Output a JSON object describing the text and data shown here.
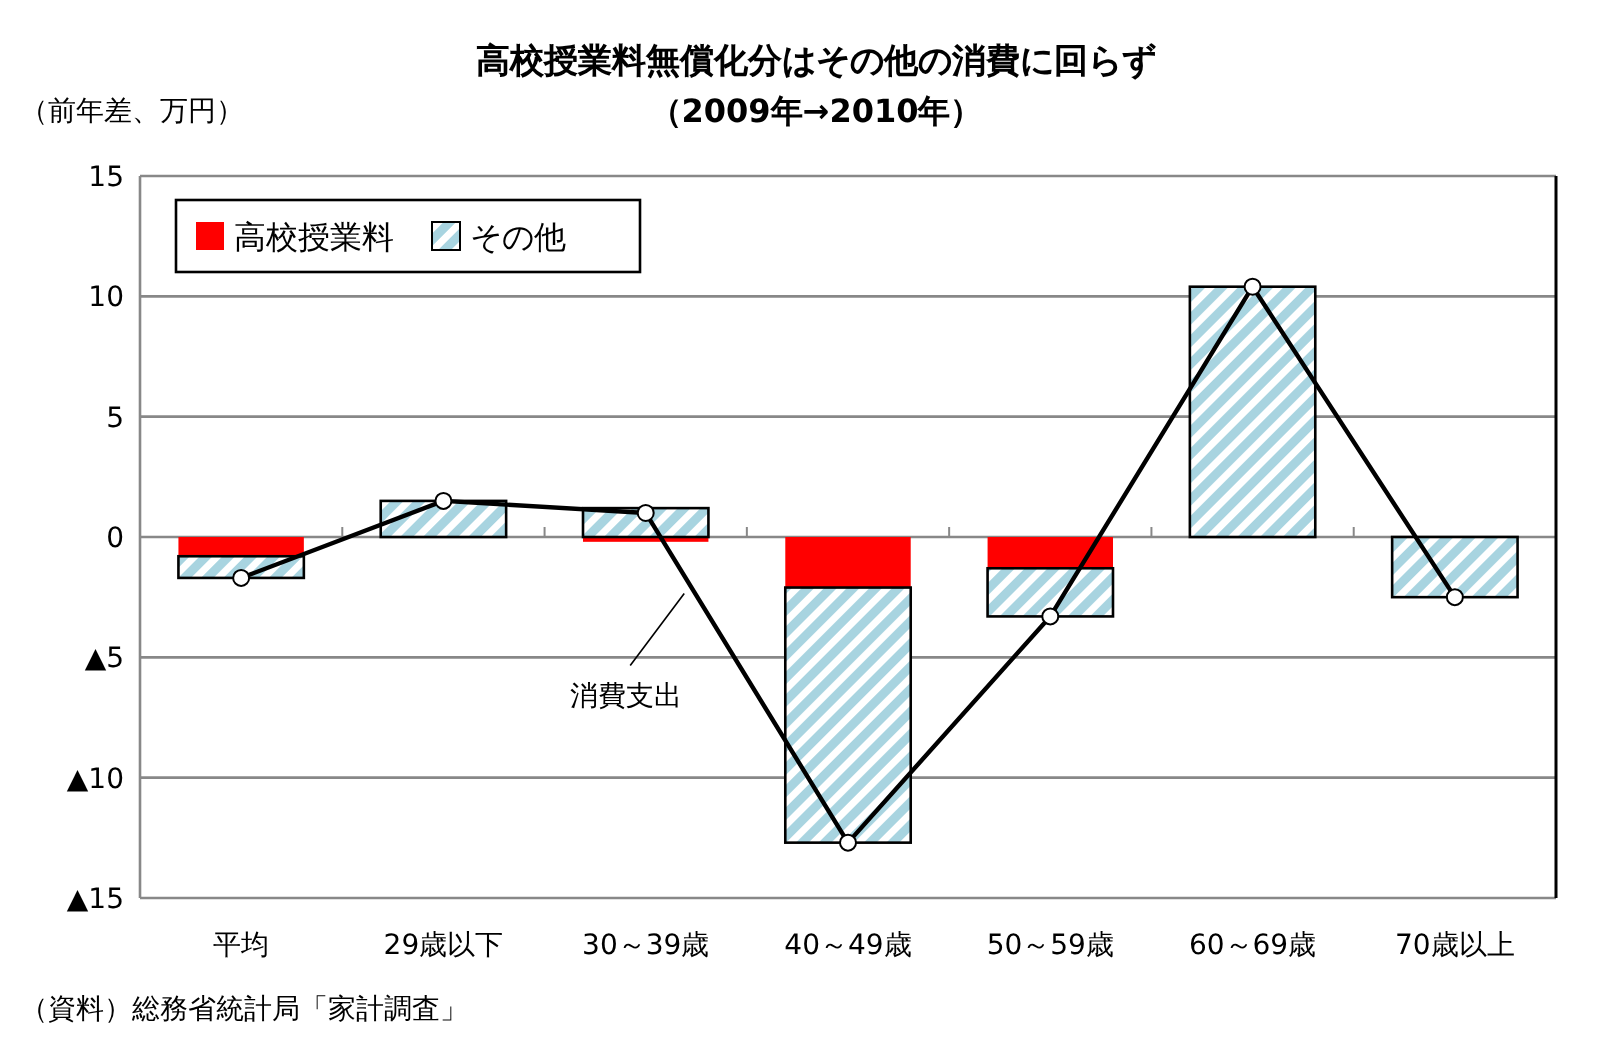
{
  "chart_data": {
    "type": "bar",
    "title": "高校授業料無償化分はその他の消費に回らず",
    "subtitle": "（2009年→2010年）",
    "ylabel": "（前年差、万円）",
    "categories": [
      "平均",
      "29歳以下",
      "30～39歳",
      "40～49歳",
      "50～59歳",
      "60～69歳",
      "70歳以上"
    ],
    "stacked": true,
    "series": [
      {
        "name": "高校授業料",
        "color": "#ff0000",
        "values": [
          -0.8,
          null,
          -0.2,
          -2.1,
          -1.3,
          null,
          null
        ]
      },
      {
        "name": "その他",
        "color": "#a8d4e0",
        "values": [
          -0.9,
          1.5,
          1.2,
          -10.6,
          -2.0,
          10.4,
          -2.5
        ]
      },
      {
        "name": "消費支出",
        "type": "line",
        "color": "#000000",
        "values": [
          -1.7,
          1.5,
          1.0,
          -12.7,
          -3.3,
          10.4,
          -2.5
        ]
      }
    ],
    "ylim": [
      -15,
      15
    ],
    "yticks": [
      {
        "value": -15,
        "label": "▲15"
      },
      {
        "value": -10,
        "label": "▲10"
      },
      {
        "value": -5,
        "label": "▲5"
      },
      0,
      5,
      10,
      15
    ],
    "grid": "y",
    "legend": "top left",
    "marker": "circle",
    "annotations": [
      "（資料）総務省統計局「家計調査」"
    ]
  }
}
